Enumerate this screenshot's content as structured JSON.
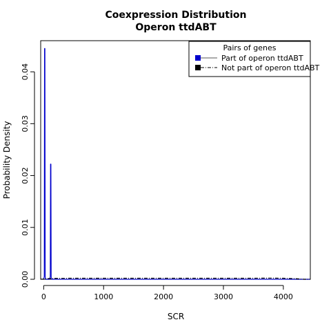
{
  "chart_data": {
    "type": "line",
    "title": [
      "Coexpression Distribution",
      "Operon ttdABT"
    ],
    "xlabel": "SCR",
    "ylabel": "Probability Density",
    "xlim": [
      -50,
      4450
    ],
    "ylim": [
      0,
      0.046
    ],
    "xticks": [
      0,
      1000,
      2000,
      3000,
      4000
    ],
    "xtick_labels": [
      "0",
      "1000",
      "2000",
      "3000",
      "4000"
    ],
    "yticks": [
      0.0,
      0.01,
      0.02,
      0.03,
      0.04
    ],
    "ytick_labels": [
      "0.00",
      "0.01",
      "0.02",
      "0.03",
      "0.04"
    ],
    "grid": false,
    "legend": {
      "title": "Pairs of genes",
      "position": "top-right",
      "entries": [
        "Part of operon ttdABT",
        "Not part of operon ttdABT"
      ]
    },
    "series": [
      {
        "name": "Part of operon ttdABT",
        "color": "#0000cc",
        "line_style": "solid",
        "x": [
          0,
          10,
          15,
          20,
          25,
          30,
          40,
          60,
          80,
          100,
          110,
          115,
          120,
          125,
          130,
          140,
          4450
        ],
        "y": [
          0,
          0.0005,
          0.0445,
          0.0445,
          0.0005,
          0.0,
          0.0,
          0.0,
          0.0,
          0.0,
          0.0005,
          0.0222,
          0.0222,
          0.0005,
          0.0,
          0.0,
          0.0
        ]
      },
      {
        "name": "Not part of operon ttdABT",
        "color": "#000000",
        "line_style": "dashdot",
        "x": [
          -50,
          0,
          100,
          200,
          500,
          1000,
          1500,
          2000,
          2500,
          3000,
          3500,
          3800,
          4000,
          4200,
          4300,
          4350,
          4450
        ],
        "y": [
          0.0,
          5e-05,
          0.00015,
          0.00018,
          0.0002,
          0.0002,
          0.0002,
          0.0002,
          0.0002,
          0.0002,
          0.0002,
          0.00022,
          0.0002,
          0.00012,
          4e-05,
          0.0,
          0.0
        ]
      }
    ]
  }
}
